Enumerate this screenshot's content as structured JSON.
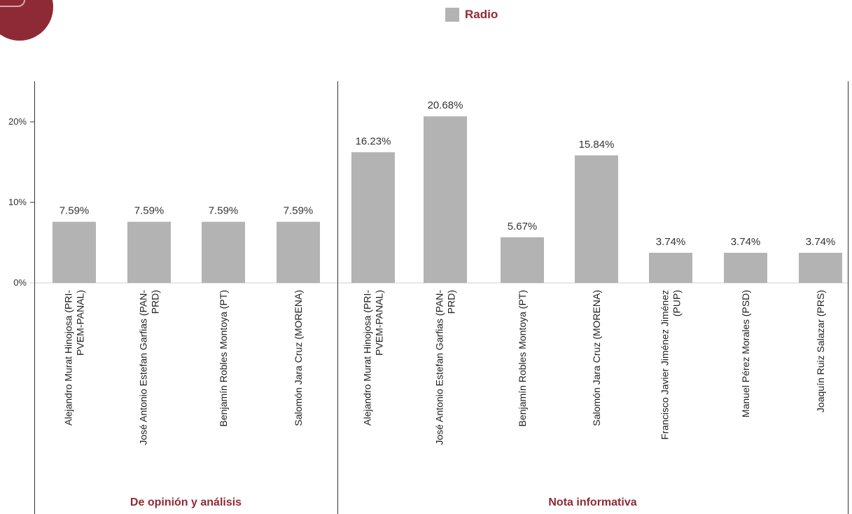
{
  "colors": {
    "bar": "#b3b3b3",
    "accent": "#8e2a35",
    "axis": "#333333"
  },
  "icons": {
    "logo": "circular-logo"
  },
  "chart_data": {
    "type": "bar",
    "legend": {
      "name": "Radio",
      "position": "top-center"
    },
    "ylim": [
      0,
      25
    ],
    "yticks": [
      {
        "value": 0,
        "label": "0%"
      },
      {
        "value": 10,
        "label": "10%"
      },
      {
        "value": 20,
        "label": "20%"
      }
    ],
    "grid": false,
    "groups": [
      {
        "name": "De opinión y análisis",
        "categories": [
          [
            "Alejandro Murat Hinojosa (PRI-",
            "PVEM-PANAL)"
          ],
          [
            "José Antonio Estefan Garfias (PAN-",
            "PRD)"
          ],
          [
            "Benjamín Robles Montoya (PT)"
          ],
          [
            "Salomón Jara Cruz (MORENA)"
          ]
        ],
        "values": [
          7.59,
          7.59,
          7.59,
          7.59
        ],
        "labels": [
          "7.59%",
          "7.59%",
          "7.59%",
          "7.59%"
        ]
      },
      {
        "name": "Nota informativa",
        "categories": [
          [
            "Alejandro Murat Hinojosa (PRI-",
            "PVEM-PANAL)"
          ],
          [
            "José Antonio Estefan Garfias (PAN-",
            "PRD)"
          ],
          [
            "Benjamín Robles Montoya (PT)"
          ],
          [
            "Salomón Jara Cruz (MORENA)"
          ],
          [
            "Francisco Javier Jiménez Jiménez",
            "(PUP)"
          ],
          [
            "Manuel Pérez Morales (PSD)"
          ],
          [
            "Joaquín Ruiz Salazar (PRS)"
          ]
        ],
        "values": [
          16.23,
          20.68,
          5.67,
          15.84,
          3.74,
          3.74,
          3.74
        ],
        "labels": [
          "16.23%",
          "20.68%",
          "5.67%",
          "15.84%",
          "3.74%",
          "3.74%",
          "3.74%"
        ]
      }
    ]
  }
}
